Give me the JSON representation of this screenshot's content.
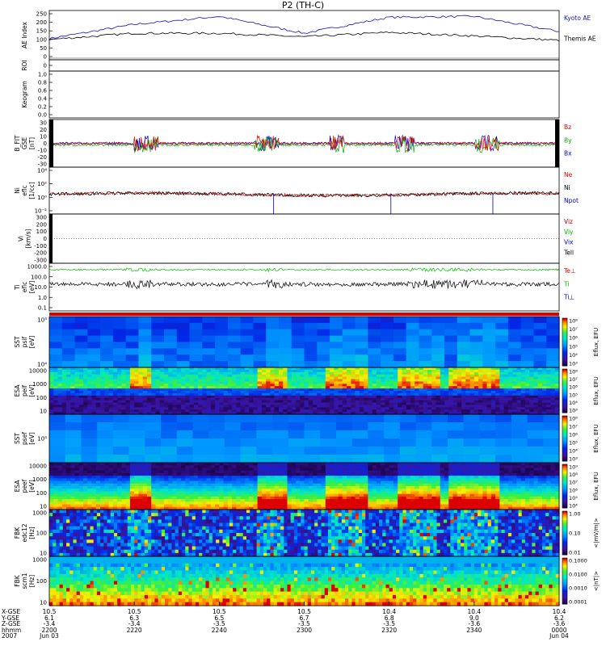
{
  "title": "P2 (TH-C)",
  "panels": [
    {
      "id": "ae",
      "ylabel": [
        "AE Index"
      ],
      "ticks": [
        "250",
        "200",
        "150",
        "100",
        "50",
        "0"
      ],
      "legend": [
        {
          "text": "Kyoto AE",
          "color": "#1010c8"
        },
        {
          "text": "Themis AE",
          "color": "#000000"
        }
      ]
    },
    {
      "id": "roi",
      "ylabel": [
        "ROI"
      ],
      "ticks": [
        "0"
      ],
      "legend": []
    },
    {
      "id": "keogram",
      "ylabel": [
        "Keogram"
      ],
      "ticks": [
        "1.0",
        "0.8",
        "0.6",
        "0.4",
        "0.2",
        "0.0"
      ],
      "legend": []
    },
    {
      "id": "bfit",
      "ylabel": [
        "B_FIT",
        "GSE",
        "[nT]"
      ],
      "ticks": [
        "30",
        "20",
        "10",
        "0",
        "-10",
        "-20",
        "-30"
      ],
      "legend": [
        {
          "text": "Bz",
          "color": "#e00000"
        },
        {
          "text": "By",
          "color": "#00b000"
        },
        {
          "text": "Bx",
          "color": "#0000d0"
        }
      ]
    },
    {
      "id": "ni",
      "ylabel": [
        "Ni",
        "eflc",
        "[1/cc]"
      ],
      "ticks": [
        "10⁴",
        "10²",
        "10⁰",
        "10⁻²"
      ],
      "legend": [
        {
          "text": "Ne",
          "color": "#e00000"
        },
        {
          "text": "Ni",
          "color": "#000000"
        },
        {
          "text": "Npot",
          "color": "#0000d0"
        }
      ]
    },
    {
      "id": "vi",
      "ylabel": [
        "Vi",
        "[km/s]"
      ],
      "ticks": [
        "300",
        "200",
        "100",
        "0",
        "-100",
        "-200",
        "-300"
      ],
      "legend": [
        {
          "text": "Viz",
          "color": "#e00000"
        },
        {
          "text": "Viy",
          "color": "#00b000"
        },
        {
          "text": "Vix",
          "color": "#0000d0"
        },
        {
          "text": "Tell",
          "color": "#000000"
        }
      ]
    },
    {
      "id": "ti",
      "ylabel": [
        "Ti",
        "eflc",
        "[eV]"
      ],
      "ticks": [
        "1000.0",
        "100.0",
        "10.0",
        "1.0",
        "0.1"
      ],
      "legend": [
        {
          "text": "Te⊥",
          "color": "#e00000"
        },
        {
          "text": "Ti",
          "color": "#00b000"
        },
        {
          "text": "Ti⊥",
          "color": "#0000d0"
        }
      ]
    },
    {
      "id": "sst1",
      "ylabel": [
        "SST",
        "psif",
        "[eV]"
      ],
      "ticks": [
        "10⁵",
        "10⁴"
      ],
      "legend": []
    },
    {
      "id": "esa1",
      "ylabel": [
        "ESA",
        "peif",
        "[eV]"
      ],
      "ticks": [
        "10000",
        "1000",
        "100",
        "10"
      ],
      "legend": []
    },
    {
      "id": "sst2",
      "ylabel": [
        "SST",
        "psef",
        "[eV]"
      ],
      "ticks": [
        "10⁵"
      ],
      "legend": []
    },
    {
      "id": "esa2",
      "ylabel": [
        "ESA",
        "peef",
        "[eV]"
      ],
      "ticks": [
        "10000",
        "1000",
        "100",
        "10"
      ],
      "legend": []
    },
    {
      "id": "fbk1",
      "ylabel": [
        "FBK",
        "edc12",
        "[Hz]"
      ],
      "ticks": [
        "1000",
        "100",
        "10"
      ],
      "legend": []
    },
    {
      "id": "fbk2",
      "ylabel": [
        "FBK",
        "scm1",
        "[Hz]"
      ],
      "ticks": [
        "1000",
        "100",
        "10"
      ],
      "legend": []
    }
  ],
  "colorbars": [
    {
      "id": "cb-sst1",
      "ticks": [
        "10⁸",
        "10⁷",
        "10⁶",
        "10⁵",
        "10⁴",
        "10³"
      ],
      "label": "Eflux, EFU"
    },
    {
      "id": "cb-esa1",
      "ticks": [
        "10⁸",
        "10⁷",
        "10⁶",
        "10⁵",
        "10⁴",
        "10³"
      ],
      "label": "Eflux, EFU"
    },
    {
      "id": "cb-sst2",
      "ticks": [
        "10⁸",
        "10⁷",
        "10⁶",
        "10⁵",
        "10⁴",
        "10³"
      ],
      "label": "Eflux, EFU"
    },
    {
      "id": "cb-esa2",
      "ticks": [
        "10⁹",
        "10⁸",
        "10⁷",
        "10⁶",
        "10⁵",
        "10⁴"
      ],
      "label": "Eflux, EFU"
    },
    {
      "id": "cb-fbk1",
      "ticks": [
        "1.00",
        "0.10",
        "0.01"
      ],
      "label": "<|mV/m|>"
    },
    {
      "id": "cb-fbk2",
      "ticks": [
        "0.1000",
        "0.0100",
        "0.0010",
        "0.0001"
      ],
      "label": "<|nT|>"
    }
  ],
  "footer": {
    "row_labels": [
      "X-GSE",
      "Y-GSE",
      "Z-GSE",
      "hhmm",
      "2007"
    ],
    "columns": [
      {
        "x": "10.5",
        "y": "6.1",
        "z": "-3.4",
        "time": "2200",
        "date": "Jun 03"
      },
      {
        "x": "10.5",
        "y": "6.3",
        "z": "-3.4",
        "time": "2220",
        "date": ""
      },
      {
        "x": "10.5",
        "y": "6.5",
        "z": "-3.5",
        "time": "2240",
        "date": ""
      },
      {
        "x": "10.5",
        "y": "6.7",
        "z": "-3.5",
        "time": "2300",
        "date": ""
      },
      {
        "x": "10.4",
        "y": "6.8",
        "z": "-3.5",
        "time": "2320",
        "date": ""
      },
      {
        "x": "10.4",
        "y": "9.0",
        "z": "-3.6",
        "time": "2340",
        "date": ""
      },
      {
        "x": "10.4",
        "y": "6.2",
        "z": "-3.6",
        "time": "0000",
        "date": "Jun 04"
      }
    ]
  },
  "chart_data": {
    "type": "line",
    "title": "P2 (TH-C)",
    "x": [
      "2200",
      "2220",
      "2240",
      "2300",
      "2320",
      "2340",
      "0000"
    ],
    "xlabel": "hhmm",
    "series": [
      {
        "name": "Kyoto AE",
        "values": [
          110,
          190,
          235,
          140,
          230,
          235,
          150
        ]
      },
      {
        "name": "Themis AE",
        "values": [
          105,
          140,
          140,
          120,
          145,
          125,
          100
        ]
      }
    ],
    "ylim": [
      0,
      250
    ],
    "ylabel": "AE Index"
  }
}
